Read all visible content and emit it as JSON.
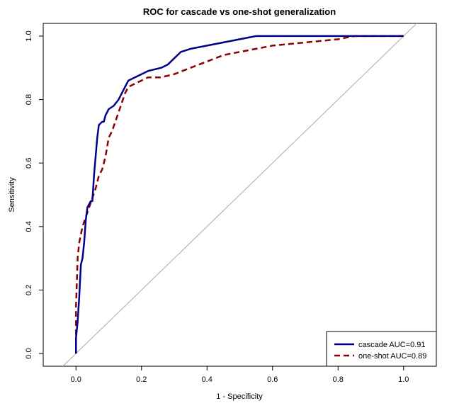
{
  "chart_data": {
    "type": "line",
    "title": "ROC for cascade vs one-shot generalization",
    "xlabel": "1 - Specificity",
    "ylabel": "Sensitivity",
    "xlim": [
      -0.1,
      1.1
    ],
    "ylim": [
      -0.04,
      1.04
    ],
    "x_ticks": [
      "0.0",
      "0.2",
      "0.4",
      "0.6",
      "0.8",
      "1.0"
    ],
    "y_ticks": [
      "0.0",
      "0.2",
      "0.4",
      "0.6",
      "0.8",
      "1.0"
    ],
    "grid": false,
    "diagonal_reference": true,
    "legend_position": "bottom-right",
    "series": [
      {
        "name": "cascade AUC=0.91",
        "color": "#00008B",
        "dash": "solid",
        "points": [
          [
            0.0,
            0.0
          ],
          [
            0.0,
            0.05
          ],
          [
            0.005,
            0.1
          ],
          [
            0.01,
            0.18
          ],
          [
            0.015,
            0.28
          ],
          [
            0.02,
            0.3
          ],
          [
            0.025,
            0.35
          ],
          [
            0.03,
            0.42
          ],
          [
            0.035,
            0.46
          ],
          [
            0.04,
            0.47
          ],
          [
            0.045,
            0.48
          ],
          [
            0.05,
            0.48
          ],
          [
            0.055,
            0.56
          ],
          [
            0.06,
            0.62
          ],
          [
            0.065,
            0.68
          ],
          [
            0.07,
            0.72
          ],
          [
            0.08,
            0.73
          ],
          [
            0.085,
            0.73
          ],
          [
            0.09,
            0.75
          ],
          [
            0.1,
            0.77
          ],
          [
            0.115,
            0.78
          ],
          [
            0.13,
            0.8
          ],
          [
            0.14,
            0.82
          ],
          [
            0.15,
            0.84
          ],
          [
            0.16,
            0.86
          ],
          [
            0.18,
            0.87
          ],
          [
            0.2,
            0.88
          ],
          [
            0.22,
            0.89
          ],
          [
            0.26,
            0.9
          ],
          [
            0.28,
            0.91
          ],
          [
            0.3,
            0.93
          ],
          [
            0.32,
            0.95
          ],
          [
            0.35,
            0.96
          ],
          [
            0.4,
            0.97
          ],
          [
            0.45,
            0.98
          ],
          [
            0.5,
            0.99
          ],
          [
            0.55,
            1.0
          ],
          [
            0.7,
            1.0
          ],
          [
            1.0,
            1.0
          ]
        ]
      },
      {
        "name": "one-shot AUC=0.89",
        "color": "#8B0000",
        "dash": "dashed",
        "points": [
          [
            0.0,
            0.0
          ],
          [
            0.0,
            0.15
          ],
          [
            0.005,
            0.3
          ],
          [
            0.01,
            0.35
          ],
          [
            0.02,
            0.4
          ],
          [
            0.03,
            0.43
          ],
          [
            0.04,
            0.46
          ],
          [
            0.05,
            0.49
          ],
          [
            0.06,
            0.52
          ],
          [
            0.07,
            0.56
          ],
          [
            0.08,
            0.58
          ],
          [
            0.09,
            0.62
          ],
          [
            0.1,
            0.68
          ],
          [
            0.11,
            0.7
          ],
          [
            0.12,
            0.73
          ],
          [
            0.13,
            0.76
          ],
          [
            0.14,
            0.79
          ],
          [
            0.15,
            0.82
          ],
          [
            0.16,
            0.84
          ],
          [
            0.18,
            0.85
          ],
          [
            0.2,
            0.86
          ],
          [
            0.22,
            0.87
          ],
          [
            0.26,
            0.87
          ],
          [
            0.3,
            0.88
          ],
          [
            0.35,
            0.9
          ],
          [
            0.4,
            0.92
          ],
          [
            0.45,
            0.94
          ],
          [
            0.5,
            0.95
          ],
          [
            0.55,
            0.96
          ],
          [
            0.6,
            0.97
          ],
          [
            0.7,
            0.98
          ],
          [
            0.8,
            0.99
          ],
          [
            0.85,
            1.0
          ],
          [
            1.0,
            1.0
          ]
        ]
      }
    ]
  }
}
